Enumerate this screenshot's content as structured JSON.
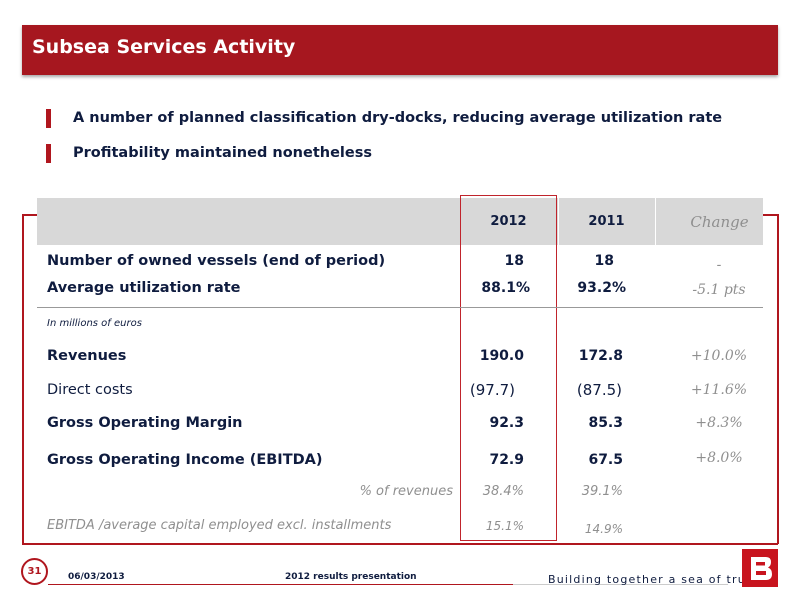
{
  "title": "Subsea Services Activity",
  "bullets": [
    "A number of planned classification dry-docks, reducing average utilization rate",
    "Profitability maintained nonetheless"
  ],
  "table": {
    "headers": {
      "c2012": "2012",
      "c2011": "2011",
      "change": "Change"
    },
    "vessels": {
      "label": "Number of owned vessels  (end of period)",
      "v2012": "18",
      "v2011": "18",
      "change": "-"
    },
    "utilization": {
      "label": "Average utilization rate",
      "v2012": "88.1%",
      "v2011": "93.2%",
      "change": "-5.1 pts"
    },
    "unit_note": "In millions of euros",
    "revenues": {
      "label": "Revenues",
      "v2012": "190.0",
      "v2011": "172.8",
      "change": "+10.0%"
    },
    "direct_costs": {
      "label": "Direct costs",
      "v2012": "(97.7)",
      "v2011": "(87.5)",
      "change": "+11.6%"
    },
    "gom": {
      "label": "Gross Operating Margin",
      "v2012": "92.3",
      "v2011": "85.3",
      "change": "+8.3%"
    },
    "ebitda": {
      "label": "Gross Operating Income (EBITDA)",
      "v2012": "72.9",
      "v2011": "67.5",
      "change": "+8.0%"
    },
    "pct_revenues": {
      "label": "% of revenues",
      "v2012": "38.4%",
      "v2011": "39.1%"
    },
    "ebitda_capital": {
      "label": "EBITDA /average capital employed excl. installments",
      "v2012": "15.1%",
      "v2011": "14.9%"
    }
  },
  "footer": {
    "page_number": "31",
    "date": "06/03/2013",
    "presentation": "2012 results presentation",
    "tagline": "Building together a sea of trust"
  },
  "colors": {
    "brand_red": "#a6171f",
    "text_navy": "#0f1c3f",
    "header_gray": "#d8d8d8"
  }
}
